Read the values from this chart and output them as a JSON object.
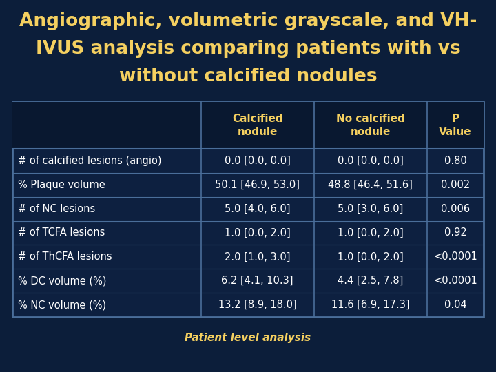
{
  "title_line1": "Angiographic, volumetric grayscale, and VH-",
  "title_line2": "IVUS analysis comparing patients with vs",
  "title_line3": "without calcified nodules",
  "title_color": "#F5D060",
  "bg_color": "#0C1E3A",
  "table_bg": "#0D2040",
  "table_border_color": "#4A6E9A",
  "header_color": "#F5D060",
  "row_label_color": "#FFFFFF",
  "data_color": "#FFFFFF",
  "footer_text": "Patient level analysis",
  "footer_color": "#F5D060",
  "col_headers": [
    "Calcified\nnodule",
    "No calcified\nnodule",
    "P\nValue"
  ],
  "row_labels": [
    "# of calcified lesions (angio)",
    "% Plaque volume",
    "# of NC lesions",
    "# of TCFA lesions",
    "# of ThCFA lesions",
    "% DC volume (%)",
    "% NC volume (%)"
  ],
  "col1": [
    "0.0 [0.0, 0.0]",
    "50.1 [46.9, 53.0]",
    "5.0 [4.0, 6.0]",
    "1.0 [0.0, 2.0]",
    "2.0 [1.0, 3.0]",
    "6.2 [4.1, 10.3]",
    "13.2 [8.9, 18.0]"
  ],
  "col2": [
    "0.0 [0.0, 0.0]",
    "48.8 [46.4, 51.6]",
    "5.0 [3.0, 6.0]",
    "1.0 [0.0, 2.0]",
    "1.0 [0.0, 2.0]",
    "4.4 [2.5, 7.8]",
    "11.6 [6.9, 17.3]"
  ],
  "col3": [
    "0.80",
    "0.002",
    "0.006",
    "0.92",
    "<0.0001",
    "<0.0001",
    "0.04"
  ],
  "title_fontsize": 19,
  "header_fontsize": 11,
  "row_fontsize": 10.5,
  "footer_fontsize": 11
}
